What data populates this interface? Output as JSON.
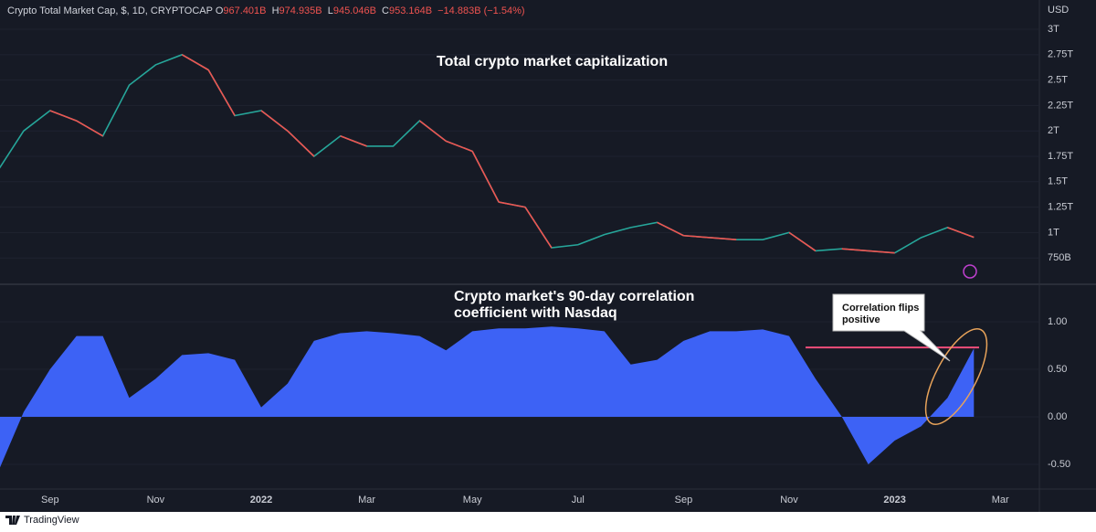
{
  "header": {
    "symbol": "Crypto Total Market Cap, $, 1D, CRYPTOCAP",
    "ohlc": [
      {
        "key": "O",
        "value": "967.401B"
      },
      {
        "key": "H",
        "value": "974.935B"
      },
      {
        "key": "L",
        "value": "945.046B"
      },
      {
        "key": "C",
        "value": "953.164B"
      }
    ],
    "change": "−14.883B (−1.54%)"
  },
  "footer": "TradingView",
  "chart_data": [
    {
      "type": "line",
      "annotation": "Total crypto market capitalization",
      "y_unit": "USD",
      "categories": [
        null,
        null,
        null,
        null,
        null,
        null,
        null,
        null,
        null,
        null,
        null,
        null,
        null,
        null,
        null,
        null,
        null,
        null,
        null,
        null,
        null,
        null,
        null,
        null,
        null,
        null,
        null,
        null,
        null,
        null,
        null,
        null,
        null,
        null,
        null,
        null,
        null,
        null,
        null
      ],
      "series": [
        {
          "name": "Crypto Total Market Cap",
          "color": "#26a69a",
          "down_color": "#ef5350",
          "values": [
            1600000000000,
            2000000000000,
            2200000000000,
            2100000000000,
            1950000000000,
            2450000000000,
            2650000000000,
            2750000000000,
            2600000000000,
            2150000000000,
            2200000000000,
            2000000000000,
            1750000000000,
            1950000000000,
            1850000000000,
            1850000000000,
            2100000000000,
            1900000000000,
            1800000000000,
            1300000000000,
            1250000000000,
            850000000000,
            880000000000,
            980000000000,
            1050000000000,
            1100000000000,
            970000000000,
            950000000000,
            930000000000,
            930000000000,
            1000000000000,
            820000000000,
            840000000000,
            820000000000,
            800000000000,
            950000000000,
            1050000000000,
            953164000000,
            null
          ]
        }
      ],
      "ylim": [
        500000000000,
        3288000000000
      ],
      "yticks": [
        {
          "value": 750000000000,
          "label": "750B"
        },
        {
          "value": 1000000000000,
          "label": "1T"
        },
        {
          "value": 1250000000000,
          "label": "1.25T"
        },
        {
          "value": 1500000000000,
          "label": "1.5T"
        },
        {
          "value": 1750000000000,
          "label": "1.75T"
        },
        {
          "value": 2000000000000,
          "label": "2T"
        },
        {
          "value": 2250000000000,
          "label": "2.25T"
        },
        {
          "value": 2500000000000,
          "label": "2.5T"
        },
        {
          "value": 2750000000000,
          "label": "2.75T"
        },
        {
          "value": 3000000000000,
          "label": "3T"
        }
      ]
    },
    {
      "type": "area",
      "annotation": [
        "Crypto market's 90-day correlation",
        "coefficient with Nasdaq"
      ],
      "callout": [
        "Correlation flips",
        "positive"
      ],
      "reference_line": {
        "value": 0.73,
        "color": "#f04e7a"
      },
      "categories": [
        null,
        null,
        "Sep",
        null,
        null,
        null,
        "Nov",
        null,
        null,
        null,
        "2022",
        null,
        null,
        null,
        "Mar",
        null,
        null,
        null,
        "May",
        null,
        null,
        null,
        "Jul",
        null,
        null,
        null,
        "Sep",
        null,
        null,
        null,
        "Nov",
        null,
        null,
        null,
        "2023",
        null,
        null,
        null,
        "Mar"
      ],
      "series": [
        {
          "name": "Correlation with Nasdaq",
          "color": "#3d62f5",
          "values": [
            -0.6,
            0.05,
            0.5,
            0.85,
            0.85,
            0.2,
            0.4,
            0.65,
            0.67,
            0.6,
            0.1,
            0.35,
            0.8,
            0.88,
            0.9,
            0.88,
            0.85,
            0.7,
            0.9,
            0.93,
            0.93,
            0.95,
            0.93,
            0.9,
            0.55,
            0.6,
            0.8,
            0.9,
            0.9,
            0.92,
            0.85,
            0.4,
            0.0,
            -0.5,
            -0.25,
            -0.1,
            0.2,
            0.72,
            null
          ]
        }
      ],
      "ylim": [
        -0.76,
        1.385
      ],
      "yticks": [
        {
          "value": -0.5,
          "label": "-0.50"
        },
        {
          "value": 0,
          "label": "0.00"
        },
        {
          "value": 0.5,
          "label": "0.50"
        },
        {
          "value": 1,
          "label": "1.00"
        }
      ]
    }
  ]
}
